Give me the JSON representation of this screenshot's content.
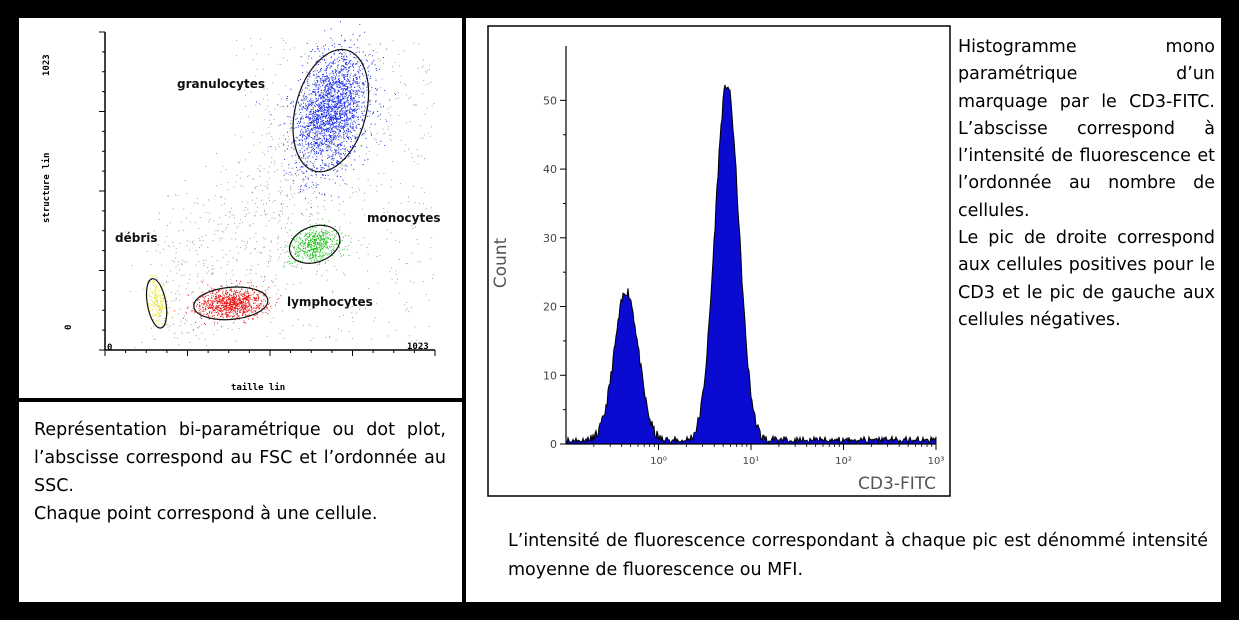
{
  "dot_plot": {
    "y_axis_label": "structure lin",
    "x_axis_label": "taille lin",
    "x_ticks": [
      "0",
      "1023"
    ],
    "y_ticks": [
      "0",
      "1023"
    ]
  },
  "left_caption": {
    "line1": "Représentation bi-paramétrique ou dot plot, l’abscisse correspond au FSC et l’ordonnée au SSC.",
    "line2": "Chaque point correspond à une cellule."
  },
  "right_caption": {
    "para1": "Histogramme mono paramétrique d’un marquage par le CD3-FITC. L’abscisse correspond à l’intensité de fluorescence et l’ordonnée au nombre de cellules.",
    "para2": "Le pic de droite correspond aux cellules positives pour le CD3 et le pic de gauche aux cellules négatives."
  },
  "bottom_caption": "L’intensité de fluorescence correspondant à chaque pic est dénommé intensité moyenne de fluorescence ou MFI.",
  "colors": {
    "granulocytes": "#1a2ee8",
    "monocytes": "#1fc21f",
    "lymphocytes": "#e81414",
    "debris": "#e8e41a",
    "background_dots": "#8a8a8a",
    "histogram_fill": "#0a0ad0"
  },
  "chart_data": [
    {
      "type": "scatter",
      "title": "",
      "xlabel": "taille lin",
      "ylabel": "structure lin",
      "xlim": [
        0,
        1023
      ],
      "ylim": [
        0,
        1023
      ],
      "populations": [
        {
          "name": "granulocytes",
          "color": "#1a2ee8",
          "center": [
            700,
            770
          ],
          "spread": [
            95,
            175
          ],
          "angle": -15,
          "count": 2200
        },
        {
          "name": "monocytes",
          "color": "#1fc21f",
          "center": [
            650,
            340
          ],
          "spread": [
            70,
            50
          ],
          "angle": 20,
          "count": 500
        },
        {
          "name": "lymphocytes",
          "color": "#e81414",
          "center": [
            390,
            150
          ],
          "spread": [
            100,
            45
          ],
          "angle": 5,
          "count": 900
        },
        {
          "name": "débris",
          "color": "#e8e41a",
          "center": [
            160,
            150
          ],
          "spread": [
            25,
            70
          ],
          "angle": 10,
          "count": 160
        }
      ]
    },
    {
      "type": "area",
      "title": "",
      "xlabel": "CD3-FITC",
      "ylabel": "Count",
      "x_scale": "log",
      "xlim": [
        0.1,
        1000
      ],
      "ylim": [
        0,
        55
      ],
      "x_ticks": [
        "10⁰",
        "10¹",
        "10²",
        "10³"
      ],
      "y_ticks": [
        "0",
        "10",
        "20",
        "30",
        "40",
        "50"
      ],
      "peaks": [
        {
          "label": "négatives",
          "x_center": 0.45,
          "height": 22
        },
        {
          "label": "positives",
          "x_center": 5.5,
          "height": 52
        }
      ]
    }
  ]
}
